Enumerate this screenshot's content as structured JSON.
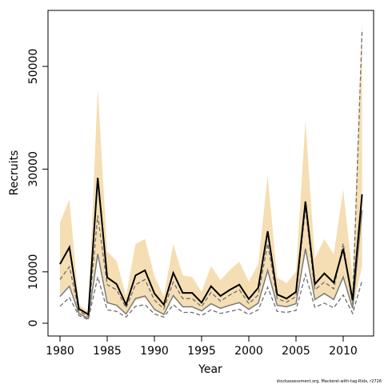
{
  "chart_data": {
    "type": "line",
    "x": [
      1980,
      1981,
      1982,
      1983,
      1984,
      1985,
      1986,
      1987,
      1988,
      1989,
      1990,
      1991,
      1992,
      1993,
      1994,
      1995,
      1996,
      1997,
      1998,
      1999,
      2000,
      2001,
      2002,
      2003,
      2004,
      2005,
      2006,
      2007,
      2008,
      2009,
      2010,
      2011,
      2012
    ],
    "xlim": [
      1978.73,
      2013.22
    ],
    "xticks": [
      1980,
      1985,
      1990,
      1995,
      2000,
      2005,
      2010
    ],
    "ylim": [
      -2490,
      60900
    ],
    "yticks": [
      0,
      10000,
      30000,
      50000
    ],
    "xlabel": "Year",
    "ylabel": "Recruits",
    "footnote": "stockassessment.org, Mackerel-with-tag-Ridx, r2726",
    "band": {
      "color": "#f5deb3",
      "lower": [
        5000,
        7300,
        1900,
        900,
        13400,
        3900,
        3400,
        1900,
        4500,
        5000,
        2600,
        1700,
        5100,
        3100,
        3100,
        2300,
        3700,
        2800,
        3400,
        3900,
        2600,
        3700,
        10000,
        3400,
        3100,
        3700,
        14000,
        4500,
        5600,
        4500,
        8900,
        2800,
        11100
      ],
      "upper": [
        19600,
        24100,
        3700,
        2200,
        45800,
        14000,
        12100,
        5300,
        15400,
        16400,
        9200,
        5300,
        15400,
        9300,
        9000,
        6100,
        11100,
        8400,
        10400,
        12000,
        8100,
        11500,
        28800,
        8900,
        7800,
        10000,
        39300,
        12600,
        16400,
        13400,
        26000,
        8900,
        59000
      ]
    },
    "series": [
      {
        "color": "#6e6e6e",
        "dash": true,
        "width": 1.3,
        "values": [
          3300,
          5000,
          1500,
          700,
          9000,
          2600,
          2300,
          1200,
          3300,
          3600,
          1800,
          1200,
          3600,
          2100,
          2100,
          1500,
          2600,
          1900,
          2300,
          2700,
          1700,
          2600,
          7000,
          2300,
          2100,
          2500,
          9500,
          3100,
          3900,
          3000,
          5500,
          1900,
          8300
        ]
      },
      {
        "color": "#7a7a7a",
        "dash": false,
        "width": 1.5,
        "values": [
          5200,
          7200,
          1900,
          900,
          13500,
          4000,
          3500,
          1800,
          4800,
          5300,
          2700,
          1700,
          5400,
          3200,
          3200,
          2400,
          3800,
          2900,
          3500,
          4000,
          2700,
          3900,
          10300,
          3500,
          3200,
          3800,
          14500,
          4600,
          5800,
          4600,
          9000,
          2900,
          22000
        ]
      },
      {
        "color": "#6e6e6e",
        "dash": true,
        "width": 1.3,
        "values": [
          8500,
          11000,
          2400,
          1300,
          21000,
          7500,
          6500,
          3000,
          7500,
          8500,
          4500,
          2800,
          8000,
          4800,
          4800,
          3200,
          6000,
          4300,
          5500,
          6500,
          3800,
          5500,
          15500,
          4800,
          4100,
          5200,
          22500,
          6500,
          8000,
          6700,
          15500,
          3800,
          57000
        ]
      },
      {
        "color": "#000000",
        "dash": false,
        "width": 2,
        "values": [
          11500,
          14800,
          2800,
          1700,
          28300,
          8900,
          7600,
          3600,
          9300,
          10300,
          5800,
          3600,
          9800,
          5900,
          5900,
          4000,
          7200,
          5300,
          6500,
          7500,
          4700,
          6900,
          17900,
          5600,
          4800,
          6100,
          23700,
          7600,
          9700,
          7900,
          14500,
          4500,
          25100
        ]
      }
    ]
  }
}
